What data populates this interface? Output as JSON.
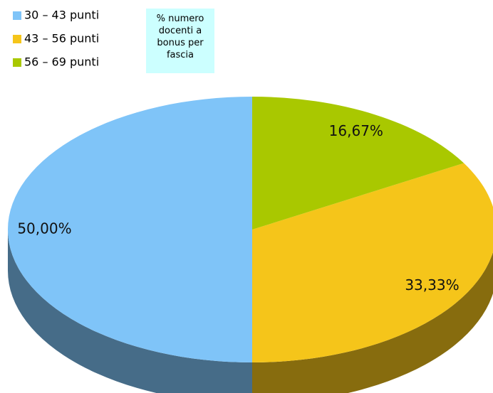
{
  "chart_data": {
    "type": "pie3d",
    "title": "% numero docenti a bonus per fascia",
    "categories": [
      "30 – 43 punti",
      "43 – 56 punti",
      "56 – 69 punti"
    ],
    "values": [
      50,
      33.33,
      16.67
    ],
    "value_labels": [
      "50,00%",
      "33,33%",
      "16,67%"
    ],
    "colors": [
      "#7fc4f8",
      "#f5c51a",
      "#a9c800"
    ]
  }
}
